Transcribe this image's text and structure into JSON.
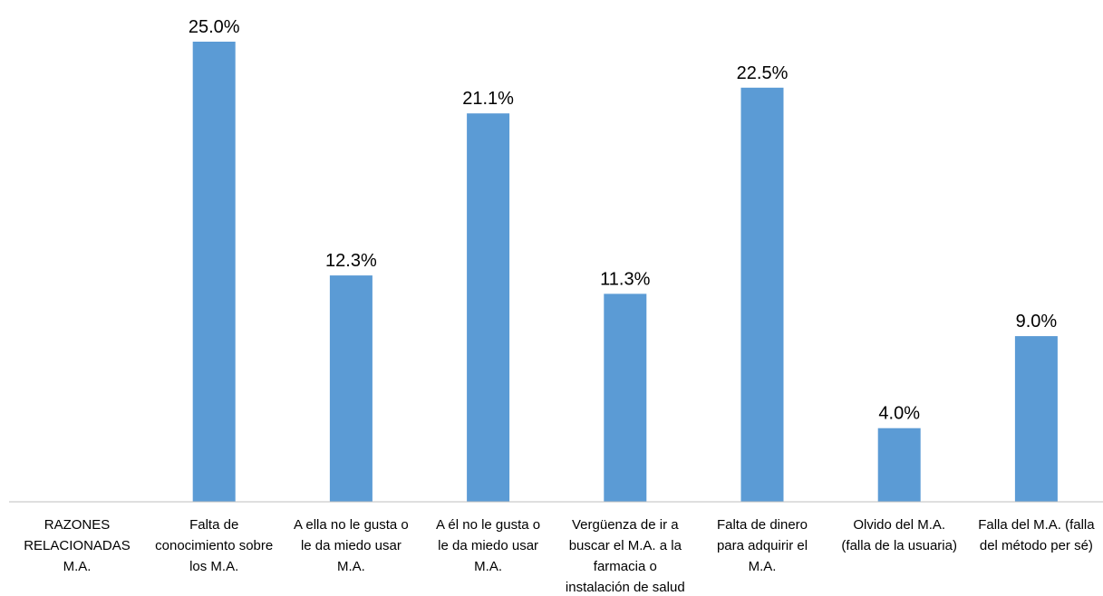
{
  "chart_data": {
    "type": "bar",
    "title": "",
    "xlabel": "",
    "ylabel": "",
    "ylim": [
      0,
      25
    ],
    "grid": false,
    "bar_color": "#5b9bd5",
    "categories": [
      "RAZONES RELACIONADAS M.A.",
      "Falta de conocimiento sobre los M.A.",
      "A ella no le gusta o le da miedo usar M.A.",
      "A él  no le gusta o le da miedo usar M.A.",
      "Vergüenza de ir a buscar el M.A. a la farmacia o instalación de salud",
      "Falta de dinero para adquirir el M.A.",
      "Olvido del M.A. (falla de la usuaria)",
      "Falla del M.A. (falla del método per sé)"
    ],
    "category_lines": [
      [
        "RAZONES",
        "RELACIONADAS",
        "M.A."
      ],
      [
        "Falta de",
        "conocimiento sobre",
        "los M.A."
      ],
      [
        "A ella no le gusta o",
        "le da miedo usar",
        "M.A."
      ],
      [
        "A él  no le gusta o",
        "le da miedo usar",
        "M.A."
      ],
      [
        "Vergüenza de ir a",
        "buscar el M.A. a la",
        "farmacia o",
        "instalación de salud"
      ],
      [
        "Falta de dinero",
        "para adquirir el",
        "M.A."
      ],
      [
        "Olvido del M.A.",
        "(falla de la usuaria)"
      ],
      [
        "Falla del M.A. (falla",
        "del método per sé)"
      ]
    ],
    "values": [
      null,
      25.0,
      12.3,
      21.1,
      11.3,
      22.5,
      4.0,
      9.0
    ],
    "data_labels": [
      "",
      "25.0%",
      "12.3%",
      "21.1%",
      "11.3%",
      "22.5%",
      "4.0%",
      "9.0%"
    ]
  }
}
